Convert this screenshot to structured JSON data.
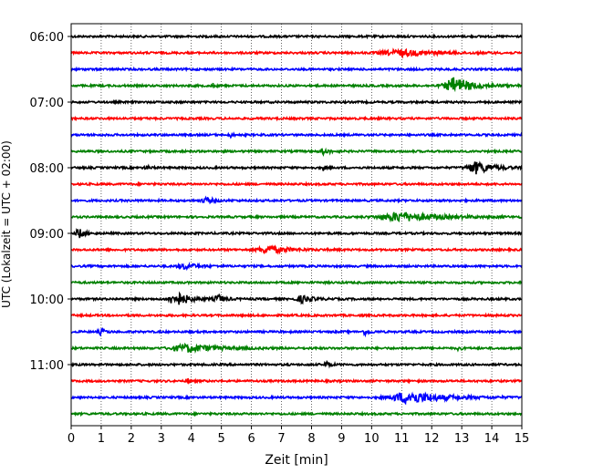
{
  "chart_data": {
    "type": "line",
    "title": "",
    "xlabel": "Zeit  [min]",
    "ylabel": "UTC (Lokalzeit = UTC + 02:00)",
    "xlim": [
      0,
      15
    ],
    "x_ticks": [
      "0",
      "1",
      "2",
      "3",
      "4",
      "5",
      "6",
      "7",
      "8",
      "9",
      "10",
      "11",
      "12",
      "13",
      "14",
      "15"
    ],
    "y_tick_labels": [
      "06:00",
      "07:00",
      "08:00",
      "09:00",
      "10:00",
      "11:00"
    ],
    "grid": "vertical dotted",
    "trace_colors": [
      "#000000",
      "#ff0000",
      "#0000ff",
      "#008000"
    ],
    "traces": [
      {
        "label": "06:00",
        "color": "#000000",
        "events": []
      },
      {
        "label": "06:15",
        "color": "#ff0000",
        "events": [
          {
            "t": 11.0,
            "amp": 0.35,
            "dur": 1.6
          }
        ]
      },
      {
        "label": "06:30",
        "color": "#0000ff",
        "events": []
      },
      {
        "label": "06:45",
        "color": "#008000",
        "events": [
          {
            "t": 12.8,
            "amp": 0.95,
            "dur": 0.9
          },
          {
            "t": 4.7,
            "amp": 0.3,
            "dur": 0.1
          }
        ]
      },
      {
        "label": "07:00",
        "color": "#000000",
        "events": []
      },
      {
        "label": "07:15",
        "color": "#ff0000",
        "events": []
      },
      {
        "label": "07:30",
        "color": "#0000ff",
        "events": [
          {
            "t": 5.3,
            "amp": 0.3,
            "dur": 0.1
          }
        ]
      },
      {
        "label": "07:45",
        "color": "#008000",
        "events": [
          {
            "t": 8.4,
            "amp": 0.3,
            "dur": 0.3
          }
        ]
      },
      {
        "label": "08:00",
        "color": "#000000",
        "events": [
          {
            "t": 13.5,
            "amp": 0.7,
            "dur": 0.8
          },
          {
            "t": 8.4,
            "amp": 0.3,
            "dur": 0.1
          },
          {
            "t": 2.5,
            "amp": 0.2,
            "dur": 0.2
          }
        ]
      },
      {
        "label": "08:15",
        "color": "#ff0000",
        "events": []
      },
      {
        "label": "08:30",
        "color": "#0000ff",
        "events": [
          {
            "t": 4.5,
            "amp": 0.3,
            "dur": 0.4
          }
        ]
      },
      {
        "label": "08:45",
        "color": "#008000",
        "events": [
          {
            "t": 11.0,
            "amp": 0.55,
            "dur": 1.8
          }
        ]
      },
      {
        "label": "09:00",
        "color": "#000000",
        "events": [
          {
            "t": 0.25,
            "amp": 0.7,
            "dur": 0.2
          }
        ]
      },
      {
        "label": "09:15",
        "color": "#ff0000",
        "events": [
          {
            "t": 6.6,
            "amp": 0.45,
            "dur": 0.9
          }
        ]
      },
      {
        "label": "09:30",
        "color": "#0000ff",
        "events": [
          {
            "t": 3.8,
            "amp": 0.3,
            "dur": 0.6
          }
        ]
      },
      {
        "label": "09:45",
        "color": "#008000",
        "events": []
      },
      {
        "label": "10:00",
        "color": "#000000",
        "events": [
          {
            "t": 3.5,
            "amp": 0.9,
            "dur": 0.6
          },
          {
            "t": 4.9,
            "amp": 0.5,
            "dur": 0.3
          },
          {
            "t": 7.7,
            "amp": 0.4,
            "dur": 0.5
          }
        ]
      },
      {
        "label": "10:15",
        "color": "#ff0000",
        "events": []
      },
      {
        "label": "10:30",
        "color": "#0000ff",
        "events": [
          {
            "t": 1.0,
            "amp": 0.35,
            "dur": 0.2
          },
          {
            "t": 9.8,
            "amp": 0.35,
            "dur": 0.2
          }
        ]
      },
      {
        "label": "10:45",
        "color": "#008000",
        "events": [
          {
            "t": 3.9,
            "amp": 0.45,
            "dur": 1.4
          },
          {
            "t": 12.9,
            "amp": 0.3,
            "dur": 0.1
          }
        ]
      },
      {
        "label": "11:00",
        "color": "#000000",
        "events": [
          {
            "t": 8.5,
            "amp": 0.3,
            "dur": 0.2
          }
        ]
      },
      {
        "label": "11:15",
        "color": "#ff0000",
        "events": [
          {
            "t": 3.9,
            "amp": 0.25,
            "dur": 0.1
          }
        ]
      },
      {
        "label": "11:30",
        "color": "#0000ff",
        "events": [
          {
            "t": 11.3,
            "amp": 0.7,
            "dur": 1.6
          }
        ]
      },
      {
        "label": "11:45",
        "color": "#008000",
        "events": []
      }
    ]
  }
}
